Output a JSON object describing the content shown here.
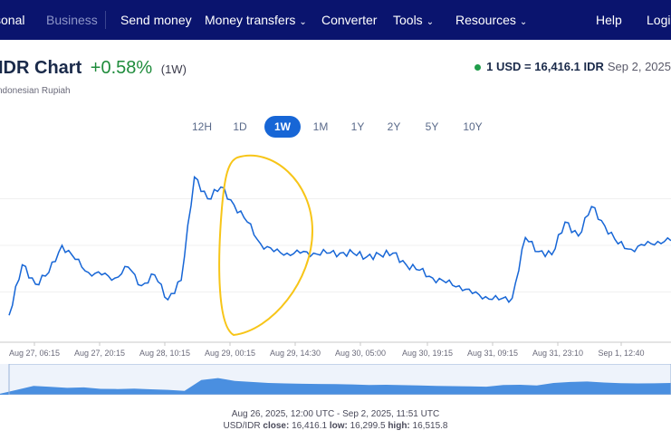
{
  "nav": {
    "items": [
      {
        "label": "sonal",
        "muted": false
      },
      {
        "label": "Business",
        "muted": true
      },
      {
        "label": "Send money",
        "muted": false
      },
      {
        "label": "Money transfers",
        "muted": false,
        "dropdown": true
      },
      {
        "label": "Converter",
        "muted": false
      },
      {
        "label": "Tools",
        "muted": false,
        "dropdown": true
      },
      {
        "label": "Resources",
        "muted": false,
        "dropdown": true
      },
      {
        "label": "Help",
        "muted": false
      },
      {
        "label": "Login",
        "muted": false
      }
    ]
  },
  "header": {
    "title": "IDR Chart",
    "change": "+0.58%",
    "period": "(1W)",
    "subtitle": "ndonesian Rupiah",
    "rate_label": "1 USD = 16,416.1 IDR",
    "rate_date": "Sep 2, 2025"
  },
  "ranges": {
    "items": [
      "12H",
      "1D",
      "1W",
      "1M",
      "1Y",
      "2Y",
      "5Y",
      "10Y"
    ],
    "active": "1W"
  },
  "chart_data": {
    "type": "line",
    "x_tick_labels": [
      "Aug 27, 06:15",
      "Aug 27, 20:15",
      "Aug 28, 10:15",
      "Aug 29, 00:15",
      "Aug 29, 14:30",
      "Aug 30, 05:00",
      "Aug 30, 19:15",
      "Aug 31, 09:15",
      "Aug 31, 23:10",
      "Sep 1, 12:40"
    ],
    "series": [
      {
        "color": "#1766d6",
        "x": [
          0,
          2,
          4,
          6,
          8,
          10,
          12,
          14,
          16,
          18,
          20,
          22,
          24,
          26,
          28,
          30,
          32,
          34,
          36,
          38,
          40,
          42,
          44,
          46,
          48,
          50,
          52,
          54,
          56,
          58,
          60,
          62,
          64,
          66,
          68,
          70,
          72,
          74,
          76,
          78,
          80,
          82,
          84,
          86,
          88,
          90,
          92,
          94,
          96,
          98,
          100
        ],
        "y": [
          16320,
          16385,
          16360,
          16375,
          16410,
          16392,
          16375,
          16372,
          16368,
          16382,
          16358,
          16372,
          16340,
          16365,
          16498,
          16470,
          16485,
          16462,
          16440,
          16412,
          16402,
          16400,
          16400,
          16400,
          16400,
          16400,
          16400,
          16395,
          16398,
          16400,
          16385,
          16378,
          16368,
          16362,
          16358,
          16348,
          16344,
          16340,
          16342,
          16420,
          16402,
          16398,
          16440,
          16422,
          16460,
          16435,
          16412,
          16405,
          16410,
          16415,
          16416
        ]
      }
    ],
    "ylim": [
      16290,
      16530
    ],
    "navigator": {
      "y": [
        16300,
        16340,
        16380,
        16370,
        16360,
        16365,
        16350,
        16348,
        16352,
        16345,
        16340,
        16330,
        16440,
        16460,
        16430,
        16420,
        16410,
        16405,
        16402,
        16400,
        16398,
        16395,
        16390,
        16392,
        16388,
        16385,
        16380,
        16378,
        16375,
        16372,
        16390,
        16392,
        16385,
        16410,
        16420,
        16425,
        16415,
        16408,
        16405,
        16406,
        16410
      ]
    },
    "ticks_color": "#c8c8c8",
    "annotation": {
      "shape": "ellipse",
      "color": "#f7c518"
    }
  },
  "footer": {
    "range": "Aug 26, 2025, 12:00 UTC - Sep 2, 2025, 11:51 UTC",
    "pair": "USD/IDR",
    "close_label": "close:",
    "close_value": "16,416.1",
    "low_label": "low:",
    "low_value": "16,299.5",
    "high_label": "high:",
    "high_value": "16,515.8"
  }
}
